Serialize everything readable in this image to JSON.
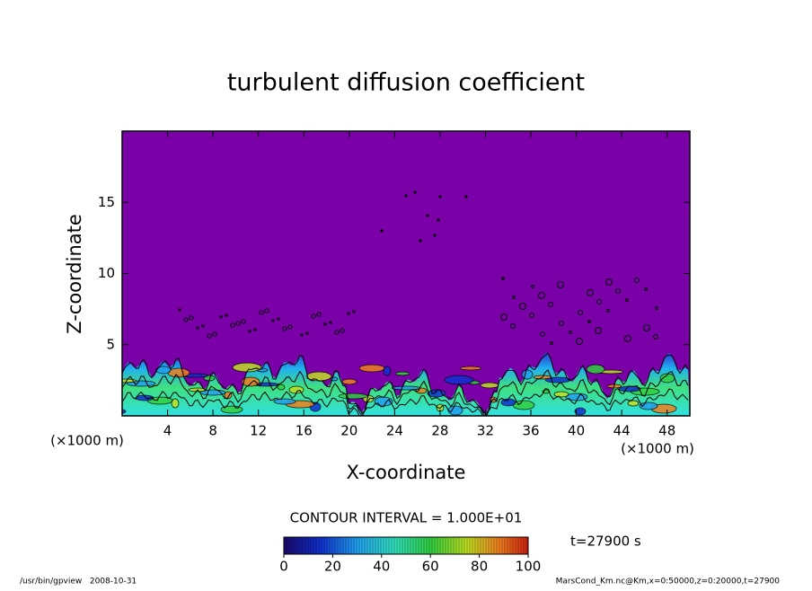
{
  "chart_data": {
    "type": "contour",
    "title": "turbulent diffusion coefficient",
    "x_label": "X-coordinate",
    "y_label": "Z-coordinate",
    "x_unit": "(×1000 m)",
    "xlim": [
      0,
      50
    ],
    "xticks": [
      4,
      8,
      12,
      16,
      20,
      24,
      28,
      32,
      36,
      40,
      44,
      48
    ],
    "ylim": [
      0,
      20
    ],
    "yticks": [
      5,
      10,
      15
    ],
    "contour_interval": "CONTOUR INTERVAL = 1.000E+01",
    "time_label": "t=27900 s",
    "clim": [
      0,
      100
    ],
    "cticks": [
      0,
      20,
      40,
      60,
      80,
      100
    ],
    "footer_left": "/usr/bin/gpview   2008-10-31",
    "footer_right": "MarsCond_Km.nc@Km,x=0:50000,z=0:20000,t=27900"
  }
}
